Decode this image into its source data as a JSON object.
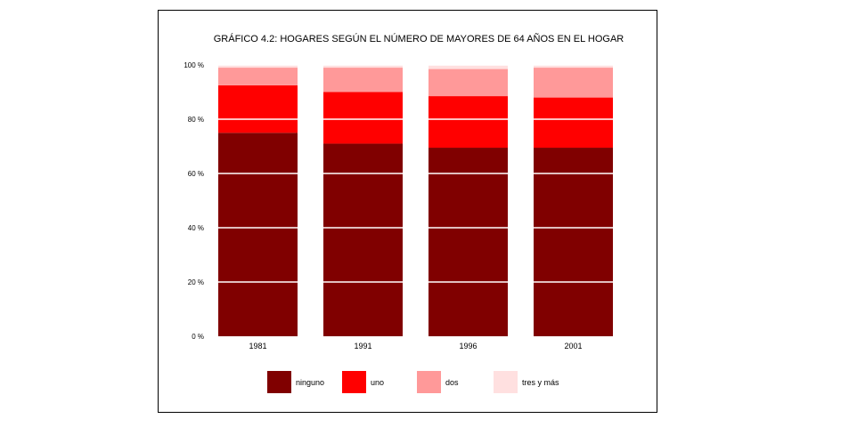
{
  "chart_data": {
    "type": "bar",
    "stacked": true,
    "normalized": true,
    "title": "GRÁFICO 4.2: HOGARES SEGÚN EL NÚMERO DE MAYORES DE 64 AÑOS EN EL HOGAR",
    "xlabel": "",
    "ylabel": "",
    "ylim": [
      0,
      100
    ],
    "y_ticks": [
      "0 %",
      "20 %",
      "40 %",
      "60 %",
      "80 %",
      "100 %"
    ],
    "y_tick_values": [
      0,
      20,
      40,
      60,
      80,
      100
    ],
    "grid": true,
    "legend_position": "bottom",
    "categories": [
      "1981",
      "1991",
      "1996",
      "2001"
    ],
    "series": [
      {
        "name": "ninguno",
        "color": "#800000",
        "values": [
          75,
          71,
          69.5,
          69.5
        ]
      },
      {
        "name": "uno",
        "color": "#ff0000",
        "values": [
          17.5,
          19,
          19,
          18.5
        ]
      },
      {
        "name": "dos",
        "color": "#ff9999",
        "values": [
          6.5,
          9,
          10,
          11
        ]
      },
      {
        "name": "tres y más",
        "color": "#ffe0e0",
        "values": [
          1,
          1,
          1.5,
          1
        ]
      }
    ]
  }
}
